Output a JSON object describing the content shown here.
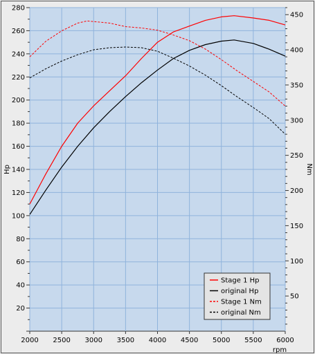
{
  "chart_data": {
    "type": "line",
    "xlabel": "rpm",
    "ylabel_left": "Hp",
    "ylabel_right": "Nm",
    "xlim": [
      2000,
      6000
    ],
    "ylim_left": [
      0,
      280
    ],
    "ylim_right": [
      0,
      460
    ],
    "x_ticks": [
      2000,
      2500,
      3000,
      3500,
      4000,
      4500,
      5000,
      5500,
      6000
    ],
    "y_left_ticks": [
      20,
      40,
      60,
      80,
      100,
      120,
      140,
      160,
      180,
      200,
      220,
      240,
      260,
      280
    ],
    "y_right_ticks": [
      50,
      100,
      150,
      200,
      250,
      300,
      350,
      400,
      450
    ],
    "grid": true,
    "legend_position": "bottom-right",
    "series": [
      {
        "name": "Stage 1 Hp",
        "axis": "left",
        "color": "#ff0000",
        "dash": "solid",
        "x": [
          2000,
          2250,
          2500,
          2750,
          3000,
          3250,
          3500,
          3750,
          4000,
          4250,
          4500,
          4750,
          5000,
          5200,
          5500,
          5750,
          6000
        ],
        "y": [
          110,
          136,
          160,
          180,
          195,
          208,
          221,
          236,
          250,
          259,
          264,
          269,
          272,
          273,
          271,
          269,
          265
        ]
      },
      {
        "name": "original Hp",
        "axis": "left",
        "color": "#000000",
        "dash": "solid",
        "x": [
          2000,
          2250,
          2500,
          2750,
          3000,
          3250,
          3500,
          3750,
          4000,
          4250,
          4500,
          4750,
          5000,
          5200,
          5500,
          5750,
          6000
        ],
        "y": [
          101,
          122,
          142,
          160,
          176,
          190,
          203,
          215,
          226,
          236,
          243,
          248,
          251,
          252,
          249,
          244,
          238
        ]
      },
      {
        "name": "Stage 1 Nm",
        "axis": "right",
        "color": "#ff0000",
        "dash": "dashed",
        "x": [
          2000,
          2250,
          2500,
          2750,
          2900,
          3250,
          3500,
          3750,
          4000,
          4250,
          4500,
          4750,
          5000,
          5250,
          5500,
          5750,
          6000
        ],
        "y": [
          390,
          412,
          427,
          438,
          441,
          438,
          433,
          431,
          428,
          421,
          413,
          401,
          386,
          370,
          355,
          340,
          320
        ]
      },
      {
        "name": "original Nm",
        "axis": "right",
        "color": "#000000",
        "dash": "dashed",
        "x": [
          2000,
          2250,
          2500,
          2750,
          3000,
          3250,
          3500,
          3750,
          4000,
          4250,
          4500,
          4750,
          5000,
          5250,
          5500,
          5750,
          6000
        ],
        "y": [
          360,
          373,
          384,
          393,
          400,
          403,
          404,
          403,
          398,
          388,
          377,
          364,
          349,
          333,
          318,
          302,
          280
        ]
      }
    ]
  }
}
